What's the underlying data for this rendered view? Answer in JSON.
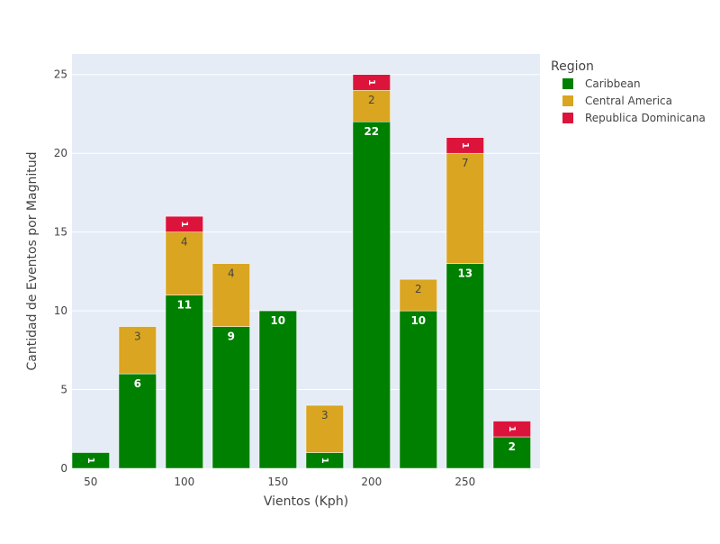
{
  "chart_data": {
    "type": "bar",
    "barmode": "stack",
    "title": "",
    "xlabel": "Vientos (Kph)",
    "ylabel": "Cantidad de Eventos por Magnitud",
    "xlim": [
      40,
      290
    ],
    "ylim": [
      0,
      26.3
    ],
    "x_ticks": [
      50,
      100,
      150,
      200,
      250
    ],
    "y_ticks": [
      0,
      5,
      10,
      15,
      20,
      25
    ],
    "x": [
      50,
      75,
      100,
      125,
      150,
      175,
      200,
      225,
      250,
      275
    ],
    "series": [
      {
        "name": "Caribbean",
        "color": "#008000",
        "label_color": "#ffffff",
        "values": [
          1,
          6,
          11,
          9,
          10,
          1,
          22,
          10,
          13,
          2
        ]
      },
      {
        "name": "Central America",
        "color": "#DAA520",
        "label_color": "#444444",
        "values": [
          0,
          3,
          4,
          4,
          0,
          3,
          2,
          2,
          7,
          0
        ]
      },
      {
        "name": "Republica Dominicana",
        "color": "#DC143C",
        "label_color": "#ffffff",
        "values": [
          0,
          0,
          1,
          0,
          0,
          0,
          1,
          0,
          1,
          1
        ]
      }
    ],
    "grid": true,
    "background": "#E5ECF6",
    "legend": {
      "title": "Region",
      "placement": "top-right"
    }
  }
}
